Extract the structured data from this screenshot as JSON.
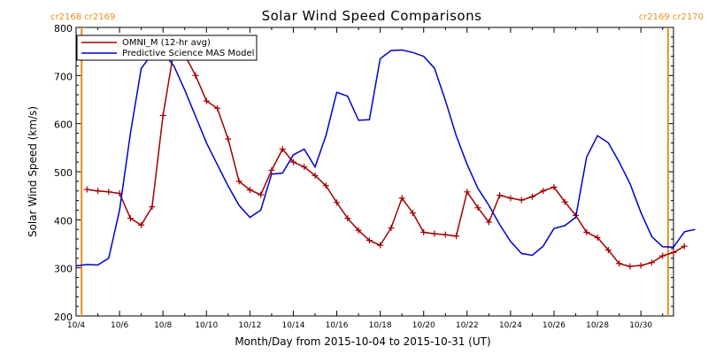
{
  "chart_data": {
    "type": "line",
    "title": "Solar Wind Speed Comparisons",
    "xlabel": "Month/Day from 2015-10-04 to 2015-10-31 (UT)",
    "ylabel": "Solar Wind Speed (km/s)",
    "xlim": [
      "2015-10-04",
      "2015-10-31"
    ],
    "ylim": [
      200,
      800
    ],
    "y_ticks": [
      200,
      300,
      400,
      500,
      600,
      700,
      800
    ],
    "x_tick_labels": [
      "10/4",
      "10/6",
      "10/8",
      "10/10",
      "10/12",
      "10/14",
      "10/16",
      "10/18",
      "10/20",
      "10/22",
      "10/24",
      "10/26",
      "10/28",
      "10/30"
    ],
    "carrington_markers": [
      {
        "date": "2015-10-04T06:00",
        "label": "cr2168 cr2169",
        "color": "#e89020",
        "position": "left"
      },
      {
        "date": "2015-10-31T06:00",
        "label": "cr2169 cr2170",
        "color": "#e89020",
        "position": "right"
      }
    ],
    "legend": {
      "placement": "top-left"
    },
    "series": [
      {
        "name": "OMNI_M (12-hr avg)",
        "color": "#a00000",
        "marker": "plus",
        "points": [
          [
            "2015-10-04T12:00",
            463
          ],
          [
            "2015-10-05T00:00",
            460
          ],
          [
            "2015-10-05T12:00",
            458
          ],
          [
            "2015-10-06T00:00",
            455
          ],
          [
            "2015-10-06T12:00",
            403
          ],
          [
            "2015-10-07T00:00",
            389
          ],
          [
            "2015-10-07T12:00",
            427
          ],
          [
            "2015-10-08T00:00",
            617
          ],
          [
            "2015-10-08T12:00",
            752
          ],
          [
            "2015-10-09T00:00",
            743
          ],
          [
            "2015-10-09T12:00",
            700
          ],
          [
            "2015-10-10T00:00",
            647
          ],
          [
            "2015-10-10T12:00",
            632
          ],
          [
            "2015-10-11T00:00",
            568
          ],
          [
            "2015-10-11T12:00",
            480
          ],
          [
            "2015-10-12T00:00",
            462
          ],
          [
            "2015-10-12T12:00",
            452
          ],
          [
            "2015-10-13T00:00",
            503
          ],
          [
            "2015-10-13T12:00",
            547
          ],
          [
            "2015-10-14T00:00",
            520
          ],
          [
            "2015-10-14T12:00",
            510
          ],
          [
            "2015-10-15T00:00",
            492
          ],
          [
            "2015-10-15T12:00",
            471
          ],
          [
            "2015-10-16T00:00",
            436
          ],
          [
            "2015-10-16T12:00",
            403
          ],
          [
            "2015-10-17T00:00",
            378
          ],
          [
            "2015-10-17T12:00",
            357
          ],
          [
            "2015-10-18T00:00",
            347
          ],
          [
            "2015-10-18T12:00",
            383
          ],
          [
            "2015-10-19T00:00",
            445
          ],
          [
            "2015-10-19T12:00",
            414
          ],
          [
            "2015-10-20T00:00",
            374
          ],
          [
            "2015-10-20T12:00",
            371
          ],
          [
            "2015-10-21T00:00",
            369
          ],
          [
            "2015-10-21T12:00",
            366
          ],
          [
            "2015-10-22T00:00",
            458
          ],
          [
            "2015-10-22T12:00",
            425
          ],
          [
            "2015-10-23T00:00",
            395
          ],
          [
            "2015-10-23T12:00",
            451
          ],
          [
            "2015-10-24T00:00",
            445
          ],
          [
            "2015-10-24T12:00",
            441
          ],
          [
            "2015-10-25T00:00",
            448
          ],
          [
            "2015-10-25T12:00",
            460
          ],
          [
            "2015-10-26T00:00",
            468
          ],
          [
            "2015-10-26T12:00",
            437
          ],
          [
            "2015-10-27T00:00",
            409
          ],
          [
            "2015-10-27T12:00",
            374
          ],
          [
            "2015-10-28T00:00",
            363
          ],
          [
            "2015-10-28T12:00",
            337
          ],
          [
            "2015-10-29T00:00",
            309
          ],
          [
            "2015-10-29T12:00",
            303
          ],
          [
            "2015-10-30T00:00",
            305
          ],
          [
            "2015-10-30T12:00",
            311
          ],
          [
            "2015-10-31T00:00",
            325
          ],
          [
            "2015-10-31T12:00",
            332
          ],
          [
            "2015-11-01T00:00",
            345
          ]
        ]
      },
      {
        "name": "Predictive Science MAS Model",
        "color": "#0000cc",
        "marker": "none",
        "points": [
          [
            "2015-10-04T00:00",
            304
          ],
          [
            "2015-10-04T12:00",
            307
          ],
          [
            "2015-10-05T00:00",
            306
          ],
          [
            "2015-10-05T12:00",
            320
          ],
          [
            "2015-10-06T00:00",
            420
          ],
          [
            "2015-10-06T12:00",
            580
          ],
          [
            "2015-10-07T00:00",
            715
          ],
          [
            "2015-10-07T12:00",
            745
          ],
          [
            "2015-10-08T00:00",
            748
          ],
          [
            "2015-10-08T12:00",
            720
          ],
          [
            "2015-10-09T00:00",
            670
          ],
          [
            "2015-10-09T12:00",
            615
          ],
          [
            "2015-10-10T00:00",
            560
          ],
          [
            "2015-10-10T12:00",
            515
          ],
          [
            "2015-10-11T00:00",
            470
          ],
          [
            "2015-10-11T12:00",
            430
          ],
          [
            "2015-10-12T00:00",
            405
          ],
          [
            "2015-10-12T12:00",
            420
          ],
          [
            "2015-10-13T00:00",
            495
          ],
          [
            "2015-10-13T12:00",
            497
          ],
          [
            "2015-10-14T00:00",
            535
          ],
          [
            "2015-10-14T12:00",
            547
          ],
          [
            "2015-10-15T00:00",
            510
          ],
          [
            "2015-10-15T12:00",
            575
          ],
          [
            "2015-10-16T00:00",
            665
          ],
          [
            "2015-10-16T12:00",
            657
          ],
          [
            "2015-10-17T00:00",
            607
          ],
          [
            "2015-10-17T12:00",
            608
          ],
          [
            "2015-10-18T00:00",
            735
          ],
          [
            "2015-10-18T12:00",
            752
          ],
          [
            "2015-10-19T00:00",
            753
          ],
          [
            "2015-10-19T12:00",
            748
          ],
          [
            "2015-10-20T00:00",
            740
          ],
          [
            "2015-10-20T12:00",
            715
          ],
          [
            "2015-10-21T00:00",
            648
          ],
          [
            "2015-10-21T12:00",
            575
          ],
          [
            "2015-10-22T00:00",
            515
          ],
          [
            "2015-10-22T12:00",
            465
          ],
          [
            "2015-10-23T00:00",
            430
          ],
          [
            "2015-10-23T12:00",
            390
          ],
          [
            "2015-10-24T00:00",
            355
          ],
          [
            "2015-10-24T12:00",
            330
          ],
          [
            "2015-10-25T00:00",
            326
          ],
          [
            "2015-10-25T12:00",
            345
          ],
          [
            "2015-10-26T00:00",
            382
          ],
          [
            "2015-10-26T12:00",
            388
          ],
          [
            "2015-10-27T00:00",
            405
          ],
          [
            "2015-10-27T12:00",
            530
          ],
          [
            "2015-10-28T00:00",
            575
          ],
          [
            "2015-10-28T12:00",
            560
          ],
          [
            "2015-10-29T00:00",
            520
          ],
          [
            "2015-10-29T12:00",
            475
          ],
          [
            "2015-10-30T00:00",
            415
          ],
          [
            "2015-10-30T12:00",
            365
          ],
          [
            "2015-10-31T00:00",
            344
          ],
          [
            "2015-10-31T12:00",
            343
          ],
          [
            "2015-11-01T00:00",
            375
          ],
          [
            "2015-11-01T12:00",
            380
          ]
        ]
      }
    ]
  }
}
